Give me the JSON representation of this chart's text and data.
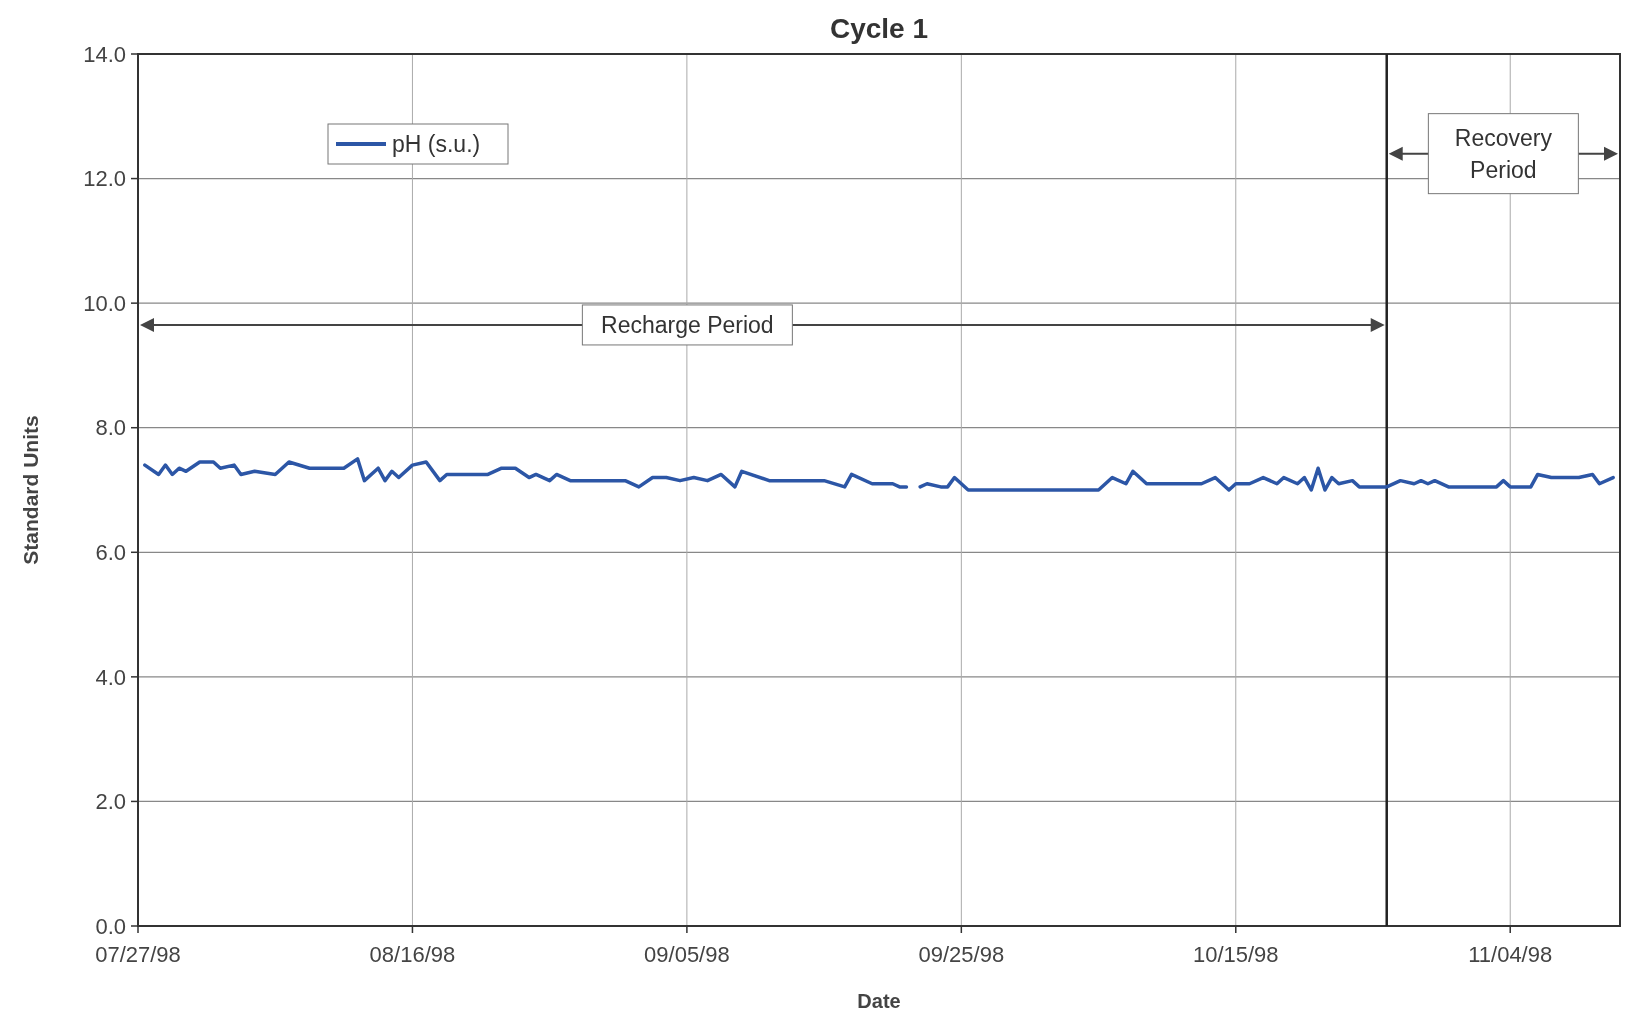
{
  "chart_data": {
    "type": "line",
    "title": "Cycle 1",
    "xlabel": "Date",
    "ylabel": "Standard Units",
    "x": [
      "1998-07-27T12:00",
      "1998-07-28T12:00",
      "1998-07-29",
      "1998-07-29T12:00",
      "1998-07-30",
      "1998-07-30T12:00",
      "1998-07-31T12:00",
      "1998-08-01T12:00",
      "1998-08-02",
      "1998-08-03",
      "1998-08-03T12:00",
      "1998-08-04T12:00",
      "1998-08-06",
      "1998-08-07",
      "1998-08-08T12:00",
      "1998-08-09T12:00",
      "1998-08-11",
      "1998-08-12",
      "1998-08-12T12:00",
      "1998-08-13T12:00",
      "1998-08-14",
      "1998-08-14T12:00",
      "1998-08-15",
      "1998-08-16",
      "1998-08-17",
      "1998-08-18",
      "1998-08-18T12:00",
      "1998-08-21T12:00",
      "1998-08-22T12:00",
      "1998-08-23T12:00",
      "1998-08-24T12:00",
      "1998-08-25",
      "1998-08-26",
      "1998-08-26T12:00",
      "1998-08-27T12:00",
      "1998-08-31T12:00",
      "1998-09-01T12:00",
      "1998-09-02T12:00",
      "1998-09-03T12:00",
      "1998-09-04T12:00",
      "1998-09-05T12:00",
      "1998-09-06T12:00",
      "1998-09-07T12:00",
      "1998-09-08T12:00",
      "1998-09-09",
      "1998-09-11",
      "1998-09-15",
      "1998-09-16T12:00",
      "1998-09-17",
      "1998-09-18T12:00",
      "1998-09-20",
      "1998-09-20T12:00",
      "1998-09-21",
      "1998-09-21T12:00",
      "1998-09-22",
      "1998-09-22T12:00",
      "1998-09-23T12:00",
      "1998-09-24",
      "1998-09-24T12:00",
      "1998-09-25T12:00",
      "1998-10-05",
      "1998-10-06",
      "1998-10-07",
      "1998-10-07T12:00",
      "1998-10-08T12:00",
      "1998-10-12T12:00",
      "1998-10-13T12:00",
      "1998-10-14T12:00",
      "1998-10-15",
      "1998-10-16",
      "1998-10-17",
      "1998-10-18",
      "1998-10-18T12:00",
      "1998-10-19T12:00",
      "1998-10-20",
      "1998-10-20T12:00",
      "1998-10-21",
      "1998-10-21T12:00",
      "1998-10-22",
      "1998-10-22T12:00",
      "1998-10-23T12:00",
      "1998-10-24",
      "1998-10-26",
      "1998-10-27",
      "1998-10-28",
      "1998-10-28T12:00",
      "1998-10-29",
      "1998-10-29T12:00",
      "1998-10-30T12:00",
      "1998-11-03",
      "1998-11-03T12:00",
      "1998-11-04",
      "1998-11-05T12:00",
      "1998-11-06",
      "1998-11-07",
      "1998-11-09",
      "1998-11-10",
      "1998-11-10T12:00",
      "1998-11-11T12:00"
    ],
    "series": [
      {
        "name": "pH (s.u.)",
        "color": "#2c56a6",
        "values": [
          7.4,
          7.25,
          7.4,
          7.25,
          7.35,
          7.3,
          7.45,
          7.45,
          7.35,
          7.4,
          7.25,
          7.3,
          7.25,
          7.45,
          7.35,
          7.35,
          7.35,
          7.5,
          7.15,
          7.35,
          7.15,
          7.3,
          7.2,
          7.4,
          7.45,
          7.15,
          7.25,
          7.25,
          7.35,
          7.35,
          7.2,
          7.25,
          7.15,
          7.25,
          7.15,
          7.15,
          7.05,
          7.2,
          7.2,
          7.15,
          7.2,
          7.15,
          7.25,
          7.05,
          7.3,
          7.15,
          7.15,
          7.05,
          7.25,
          7.1,
          7.1,
          7.05,
          7.05,
          null,
          7.05,
          7.1,
          7.05,
          7.05,
          7.2,
          7.0,
          7.0,
          7.2,
          7.1,
          7.3,
          7.1,
          7.1,
          7.2,
          7.0,
          7.1,
          7.1,
          7.2,
          7.1,
          7.2,
          7.1,
          7.2,
          7.0,
          7.35,
          7.0,
          7.2,
          7.1,
          7.15,
          7.05,
          7.05,
          7.15,
          7.1,
          7.15,
          7.1,
          7.15,
          7.05,
          7.05,
          7.15,
          7.05,
          7.05,
          7.25,
          7.2,
          7.2,
          7.25,
          7.1,
          7.2
        ]
      }
    ],
    "xlim": [
      "1998-07-27",
      "1998-11-12"
    ],
    "xticks": [
      {
        "value": "1998-07-27",
        "label": "07/27/98"
      },
      {
        "value": "1998-08-16",
        "label": "08/16/98"
      },
      {
        "value": "1998-09-05",
        "label": "09/05/98"
      },
      {
        "value": "1998-09-25",
        "label": "09/25/98"
      },
      {
        "value": "1998-10-15",
        "label": "10/15/98"
      },
      {
        "value": "1998-11-04",
        "label": "11/04/98"
      }
    ],
    "ylim": [
      0,
      14
    ],
    "yticks": [
      {
        "value": 0,
        "label": "0.0"
      },
      {
        "value": 2,
        "label": "2.0"
      },
      {
        "value": 4,
        "label": "4.0"
      },
      {
        "value": 6,
        "label": "6.0"
      },
      {
        "value": 8,
        "label": "8.0"
      },
      {
        "value": 10,
        "label": "10.0"
      },
      {
        "value": 12,
        "label": "12.0"
      },
      {
        "value": 14,
        "label": "14.0"
      }
    ],
    "ref_lines": [
      {
        "axis": "x",
        "value": "1998-10-26",
        "color": "#222222"
      }
    ],
    "annotations": [
      "Recharge Period",
      "Recovery Period"
    ],
    "grid": true,
    "legend": "top left",
    "line_style": "solid",
    "marker": "none"
  }
}
